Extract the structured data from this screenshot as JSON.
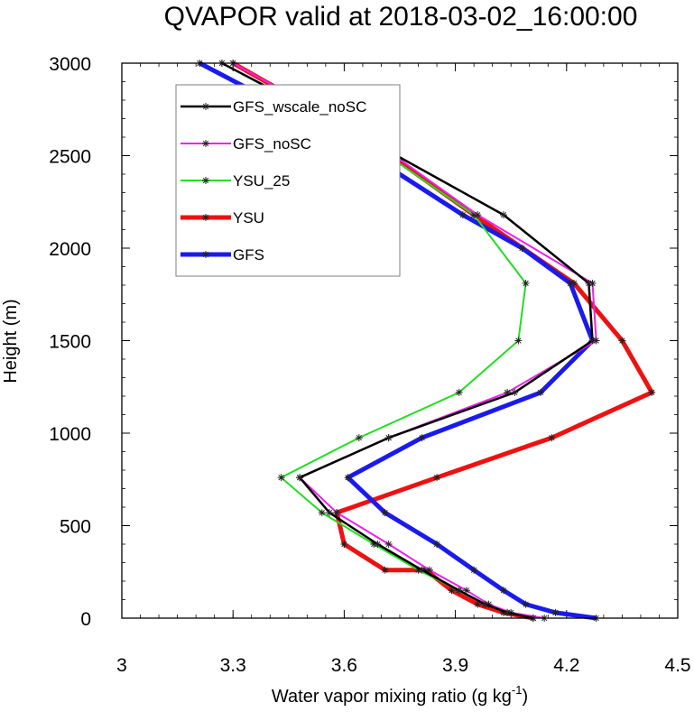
{
  "chart_data": {
    "type": "line",
    "title": "QVAPOR valid at 2018-03-02_16:00:00",
    "xlabel": "Water vapor mixing ratio (g kg",
    "xlabel_sup": "-1",
    "xlabel_close": ")",
    "ylabel": "Height (m)",
    "xlim": [
      3.0,
      4.5
    ],
    "ylim": [
      0,
      3000
    ],
    "xticks": [
      "3",
      "3.3",
      "3.6",
      "3.9",
      "4.2",
      "4.5"
    ],
    "xtick_values": [
      3.0,
      3.3,
      3.6,
      3.9,
      4.2,
      4.5
    ],
    "yticks": [
      "0",
      "500",
      "1000",
      "1500",
      "2000",
      "2500",
      "3000"
    ],
    "ytick_values": [
      0,
      500,
      1000,
      1500,
      2000,
      2500,
      3000
    ],
    "legend_position": "top-left",
    "series": [
      {
        "name": "YSU",
        "color": "#ee1111",
        "width": 5,
        "points": [
          [
            4.11,
            0
          ],
          [
            4.03,
            30
          ],
          [
            3.96,
            75
          ],
          [
            3.89,
            150
          ],
          [
            3.82,
            260
          ],
          [
            3.71,
            260
          ],
          [
            3.6,
            400
          ],
          [
            3.58,
            570
          ],
          [
            3.85,
            760
          ],
          [
            4.16,
            975
          ],
          [
            4.43,
            1220
          ],
          [
            4.35,
            1500
          ],
          [
            4.22,
            1810
          ],
          [
            3.95,
            2180
          ],
          [
            3.67,
            2580
          ],
          [
            3.3,
            3000
          ]
        ]
      },
      {
        "name": "GFS",
        "color": "#1a1aee",
        "width": 5,
        "points": [
          [
            4.28,
            0
          ],
          [
            4.17,
            30
          ],
          [
            4.09,
            75
          ],
          [
            4.03,
            150
          ],
          [
            3.95,
            260
          ],
          [
            3.85,
            400
          ],
          [
            3.71,
            570
          ],
          [
            3.61,
            760
          ],
          [
            3.81,
            975
          ],
          [
            4.13,
            1220
          ],
          [
            4.27,
            1500
          ],
          [
            4.21,
            1810
          ],
          [
            4.08,
            2000
          ],
          [
            3.92,
            2180
          ],
          [
            3.61,
            2580
          ],
          [
            3.21,
            3000
          ]
        ]
      },
      {
        "name": "YSU_25",
        "color": "#22dd22",
        "width": 2,
        "points": [
          [
            4.11,
            0
          ],
          [
            4.04,
            30
          ],
          [
            3.98,
            75
          ],
          [
            3.91,
            150
          ],
          [
            3.8,
            260
          ],
          [
            3.68,
            400
          ],
          [
            3.54,
            570
          ],
          [
            3.43,
            760
          ],
          [
            3.64,
            975
          ],
          [
            3.91,
            1220
          ],
          [
            4.07,
            1500
          ],
          [
            4.09,
            1810
          ],
          [
            3.95,
            2180
          ],
          [
            3.66,
            2580
          ],
          [
            3.27,
            3000
          ]
        ]
      },
      {
        "name": "GFS_noSC",
        "color": "#ee22ee",
        "width": 2,
        "points": [
          [
            4.14,
            0
          ],
          [
            4.05,
            30
          ],
          [
            3.99,
            75
          ],
          [
            3.93,
            150
          ],
          [
            3.83,
            260
          ],
          [
            3.72,
            400
          ],
          [
            3.58,
            570
          ],
          [
            3.48,
            760
          ],
          [
            3.72,
            975
          ],
          [
            4.04,
            1220
          ],
          [
            4.28,
            1500
          ],
          [
            4.27,
            1810
          ],
          [
            3.96,
            2180
          ],
          [
            3.68,
            2580
          ],
          [
            3.3,
            3000
          ]
        ]
      },
      {
        "name": "GFS_wscale_noSC",
        "color": "#000000",
        "width": 2.5,
        "points": [
          [
            4.11,
            0
          ],
          [
            4.04,
            30
          ],
          [
            3.98,
            75
          ],
          [
            3.91,
            150
          ],
          [
            3.81,
            260
          ],
          [
            3.69,
            400
          ],
          [
            3.56,
            570
          ],
          [
            3.48,
            760
          ],
          [
            3.72,
            975
          ],
          [
            4.06,
            1220
          ],
          [
            4.27,
            1500
          ],
          [
            4.26,
            1810
          ],
          [
            4.03,
            2180
          ],
          [
            3.67,
            2580
          ],
          [
            3.27,
            3000
          ]
        ]
      }
    ],
    "legend_order": [
      "GFS_wscale_noSC",
      "GFS_noSC",
      "YSU_25",
      "YSU",
      "GFS"
    ]
  }
}
